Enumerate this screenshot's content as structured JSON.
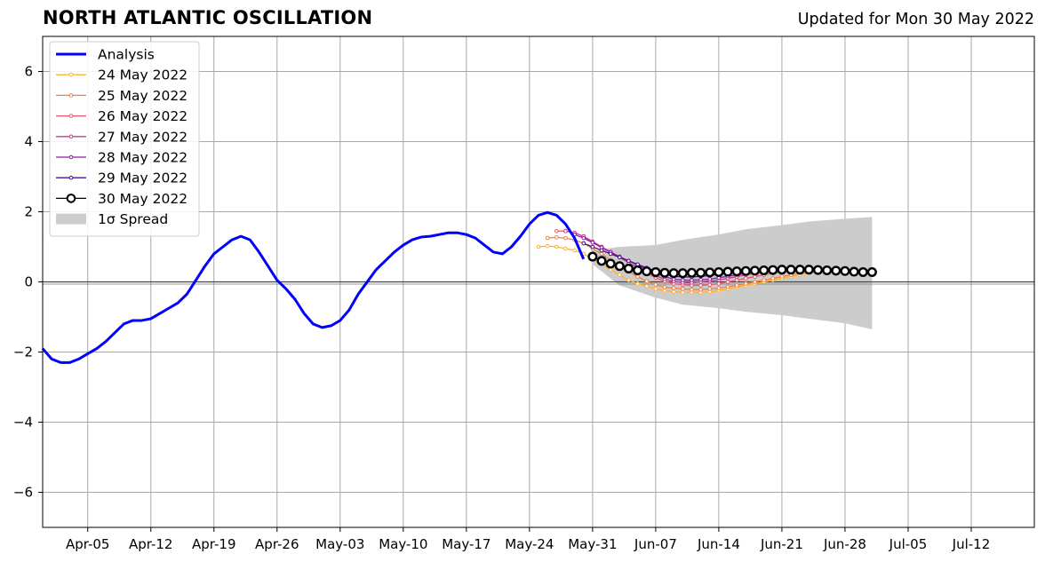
{
  "header": {
    "title": "NORTH ATLANTIC OSCILLATION",
    "subtitle": "Updated for Mon 30 May 2022"
  },
  "chart_data": {
    "type": "line",
    "title": "NORTH ATLANTIC OSCILLATION",
    "subtitle": "Updated for Mon 30 May 2022",
    "xlabel": "",
    "ylabel": "",
    "xlim": [
      "2022-03-31",
      "2022-07-19"
    ],
    "ylim": [
      -7,
      7
    ],
    "grid": true,
    "legend_position": "top-left",
    "x_ticks": [
      {
        "date": "2022-04-05",
        "label": "Apr-05"
      },
      {
        "date": "2022-04-12",
        "label": "Apr-12"
      },
      {
        "date": "2022-04-19",
        "label": "Apr-19"
      },
      {
        "date": "2022-04-26",
        "label": "Apr-26"
      },
      {
        "date": "2022-05-03",
        "label": "May-03"
      },
      {
        "date": "2022-05-10",
        "label": "May-10"
      },
      {
        "date": "2022-05-17",
        "label": "May-17"
      },
      {
        "date": "2022-05-24",
        "label": "May-24"
      },
      {
        "date": "2022-05-31",
        "label": "May-31"
      },
      {
        "date": "2022-06-07",
        "label": "Jun-07"
      },
      {
        "date": "2022-06-14",
        "label": "Jun-14"
      },
      {
        "date": "2022-06-21",
        "label": "Jun-21"
      },
      {
        "date": "2022-06-28",
        "label": "Jun-28"
      },
      {
        "date": "2022-07-05",
        "label": "Jul-05"
      },
      {
        "date": "2022-07-12",
        "label": "Jul-12"
      }
    ],
    "y_ticks": [
      {
        "value": 6,
        "label": "6"
      },
      {
        "value": 4,
        "label": "4"
      },
      {
        "value": 2,
        "label": "2"
      },
      {
        "value": 0,
        "label": "0"
      },
      {
        "value": -2,
        "label": "−2"
      },
      {
        "value": -4,
        "label": "−4"
      },
      {
        "value": -6,
        "label": "−6"
      }
    ],
    "analysis": {
      "name": "Analysis",
      "color": "#0000ff",
      "start_date": "2022-03-31",
      "values": [
        -1.9,
        -2.2,
        -2.3,
        -2.3,
        -2.2,
        -2.05,
        -1.9,
        -1.7,
        -1.45,
        -1.2,
        -1.1,
        -1.1,
        -1.05,
        -0.9,
        -0.75,
        -0.6,
        -0.35,
        0.05,
        0.45,
        0.8,
        1.0,
        1.2,
        1.3,
        1.2,
        0.85,
        0.45,
        0.05,
        -0.2,
        -0.5,
        -0.9,
        -1.2,
        -1.3,
        -1.25,
        -1.1,
        -0.8,
        -0.35,
        0.0,
        0.35,
        0.6,
        0.85,
        1.05,
        1.2,
        1.28,
        1.3,
        1.35,
        1.4,
        1.4,
        1.35,
        1.25,
        1.05,
        0.85,
        0.8,
        1.0,
        1.3,
        1.65,
        1.9,
        1.98,
        1.9,
        1.65,
        1.25,
        0.65
      ]
    },
    "forecasts": [
      {
        "name": "24 May 2022",
        "color": "#fcb430",
        "start_date": "2022-05-25",
        "values": [
          1.0,
          1.02,
          1.0,
          0.95,
          0.9,
          0.8,
          0.65,
          0.5,
          0.35,
          0.2,
          0.05,
          -0.05,
          -0.12,
          -0.2,
          -0.25,
          -0.28,
          -0.3,
          -0.3,
          -0.3,
          -0.28,
          -0.25,
          -0.2,
          -0.15,
          -0.1,
          -0.05,
          0.0,
          0.05,
          0.1,
          0.15,
          0.2,
          0.25
        ]
      },
      {
        "name": "25 May 2022",
        "color": "#f07f4a",
        "start_date": "2022-05-26",
        "values": [
          1.25,
          1.27,
          1.25,
          1.2,
          1.1,
          0.95,
          0.8,
          0.62,
          0.45,
          0.3,
          0.15,
          0.02,
          -0.08,
          -0.15,
          -0.18,
          -0.2,
          -0.22,
          -0.22,
          -0.2,
          -0.18,
          -0.14,
          -0.1,
          -0.05,
          0.0,
          0.05,
          0.1,
          0.15,
          0.2,
          0.25,
          0.28,
          0.3
        ]
      },
      {
        "name": "26 May 2022",
        "color": "#e05a6a",
        "start_date": "2022-05-27",
        "values": [
          1.45,
          1.45,
          1.4,
          1.3,
          1.15,
          1.0,
          0.85,
          0.7,
          0.55,
          0.4,
          0.25,
          0.12,
          0.02,
          -0.05,
          -0.08,
          -0.1,
          -0.1,
          -0.08,
          -0.05,
          0.0,
          0.05,
          0.1,
          0.15,
          0.2,
          0.25,
          0.28,
          0.3,
          0.32,
          0.34,
          0.36,
          0.36
        ]
      },
      {
        "name": "27 May 2022",
        "color": "#c1418f",
        "start_date": "2022-05-28",
        "values": [
          1.45,
          1.4,
          1.3,
          1.15,
          1.0,
          0.85,
          0.7,
          0.55,
          0.42,
          0.3,
          0.18,
          0.08,
          0.02,
          -0.02,
          -0.02,
          0.0,
          0.03,
          0.06,
          0.1,
          0.15,
          0.2,
          0.24,
          0.27,
          0.3,
          0.32,
          0.34,
          0.35,
          0.36,
          0.36,
          0.36,
          0.36
        ]
      },
      {
        "name": "28 May 2022",
        "color": "#8e1aa6",
        "start_date": "2022-05-29",
        "values": [
          1.35,
          1.25,
          1.12,
          0.98,
          0.85,
          0.72,
          0.6,
          0.48,
          0.36,
          0.25,
          0.15,
          0.08,
          0.05,
          0.05,
          0.06,
          0.08,
          0.12,
          0.16,
          0.2,
          0.24,
          0.27,
          0.3,
          0.32,
          0.34,
          0.35,
          0.36,
          0.36,
          0.35,
          0.34,
          0.33,
          0.32
        ]
      },
      {
        "name": "29 May 2022",
        "color": "#4b0c8c",
        "start_date": "2022-05-30",
        "values": [
          1.1,
          1.0,
          0.9,
          0.8,
          0.7,
          0.6,
          0.5,
          0.4,
          0.3,
          0.22,
          0.16,
          0.14,
          0.14,
          0.16,
          0.18,
          0.22,
          0.25,
          0.28,
          0.3,
          0.32,
          0.33,
          0.34,
          0.35,
          0.35,
          0.35,
          0.34,
          0.33,
          0.32,
          0.31,
          0.3,
          0.3
        ]
      }
    ],
    "current_forecast": {
      "name": "30 May 2022",
      "color": "#000000",
      "marker_face": "#ffffff",
      "start_date": "2022-05-31",
      "values": [
        0.72,
        0.6,
        0.52,
        0.45,
        0.38,
        0.33,
        0.3,
        0.28,
        0.26,
        0.25,
        0.25,
        0.26,
        0.26,
        0.27,
        0.28,
        0.29,
        0.3,
        0.31,
        0.32,
        0.33,
        0.34,
        0.35,
        0.35,
        0.35,
        0.35,
        0.34,
        0.33,
        0.32,
        0.31,
        0.29,
        0.28,
        0.28
      ]
    },
    "spread": {
      "name": "1σ Spread",
      "color": "#cccccc",
      "start_date": "2022-05-31",
      "dates": [
        "2022-05-31",
        "2022-06-03",
        "2022-06-07",
        "2022-06-10",
        "2022-06-14",
        "2022-06-17",
        "2022-06-21",
        "2022-06-24",
        "2022-06-28",
        "2022-07-01"
      ],
      "upper": [
        0.9,
        1.0,
        1.05,
        1.2,
        1.35,
        1.5,
        1.62,
        1.72,
        1.8,
        1.85
      ],
      "lower": [
        0.5,
        -0.1,
        -0.45,
        -0.65,
        -0.75,
        -0.85,
        -0.95,
        -1.05,
        -1.18,
        -1.35
      ]
    }
  },
  "legend": {
    "items": [
      {
        "label": "Analysis",
        "kind": "line",
        "color": "#0000ff"
      },
      {
        "label": "24 May 2022",
        "kind": "small-marker",
        "color": "#fcb430"
      },
      {
        "label": "25 May 2022",
        "kind": "small-marker",
        "color": "#f07f4a"
      },
      {
        "label": "26 May 2022",
        "kind": "small-marker",
        "color": "#e05a6a"
      },
      {
        "label": "27 May 2022",
        "kind": "small-marker",
        "color": "#c1418f"
      },
      {
        "label": "28 May 2022",
        "kind": "small-marker",
        "color": "#8e1aa6"
      },
      {
        "label": "29 May 2022",
        "kind": "small-marker",
        "color": "#4b0c8c"
      },
      {
        "label": "30 May 2022",
        "kind": "big-marker",
        "color": "#000000"
      },
      {
        "label": "1σ Spread",
        "kind": "patch",
        "color": "#cccccc"
      }
    ]
  }
}
